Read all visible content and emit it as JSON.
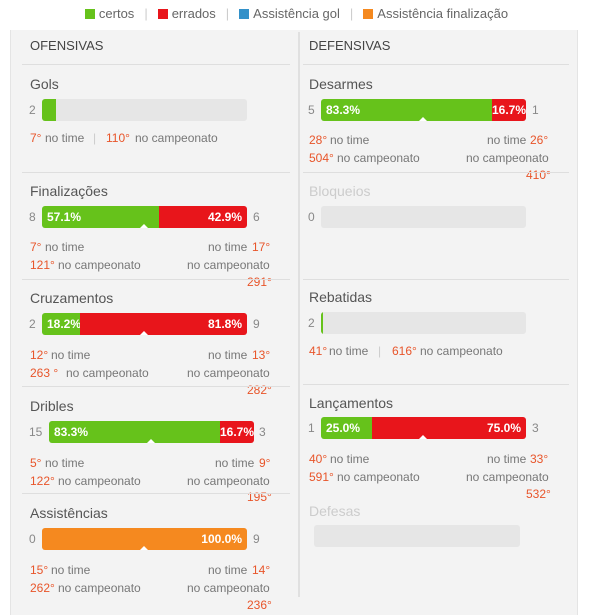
{
  "legend": [
    {
      "label": "certos",
      "color": "#66c21b"
    },
    {
      "label": "errados",
      "color": "#e8151b"
    },
    {
      "label": "Assistência gol",
      "color": "#3391c9"
    },
    {
      "label": "Assistência finalização",
      "color": "#f5891f"
    }
  ],
  "colors": {
    "green": "#66c21b",
    "red": "#e8151b",
    "orange": "#f5891f",
    "rank": "#e8552a"
  },
  "ofensivas": {
    "title": "OFENSIVAS",
    "gols": {
      "title": "Gols",
      "left": "2",
      "fill_fraction": 0.05,
      "team_rank": "7°",
      "team_label": "no time",
      "camp_rank": "110°",
      "camp_label": "no campeonato"
    },
    "finalizacoes": {
      "title": "Finalizações",
      "left": "8",
      "right": "6",
      "pct_ok": "57.1%",
      "pct_err": "42.9%",
      "team_rank_l": "7°",
      "team_label_l": "no time",
      "camp_rank_l": "121°",
      "camp_label_l": "no campeonato",
      "team_label_r": "no time",
      "team_rank_r": "17°",
      "camp_label_r": "no campeonato",
      "camp_rank_r": "291°"
    },
    "cruzamentos": {
      "title": "Cruzamentos",
      "left": "2",
      "right": "9",
      "pct_ok": "18.2%",
      "pct_err": "81.8%",
      "team_rank_l": "12°",
      "team_label_l": "no time",
      "camp_rank_l": "263 °",
      "camp_label_l": "no campeonato",
      "team_label_r": "no time",
      "team_rank_r": "13°",
      "camp_label_r": "no campeonato",
      "camp_rank_r": "282°"
    },
    "dribles": {
      "title": "Dribles",
      "left": "15",
      "right": "3",
      "pct_ok": "83.3%",
      "pct_err": "16.7%",
      "team_rank_l": "5°",
      "team_label_l": "no time",
      "camp_rank_l": "122°",
      "camp_label_l": "no campeonato",
      "team_label_r": "no time",
      "team_rank_r": "9°",
      "camp_label_r": "no campeonato",
      "camp_rank_r": "195°"
    },
    "assistencias": {
      "title": "Assistências",
      "left": "0",
      "right": "9",
      "pct": "100.0%",
      "team_rank_l": "15°",
      "team_label_l": "no time",
      "camp_rank_l": "262°",
      "camp_label_l": "no campeonato",
      "team_label_r": "no time",
      "team_rank_r": "14°",
      "camp_label_r": "no campeonato",
      "camp_rank_r": "236°"
    }
  },
  "defensivas": {
    "title": "DEFENSIVAS",
    "desarmes": {
      "title": "Desarmes",
      "left": "5",
      "right": "1",
      "pct_ok": "83.3%",
      "pct_err": "16.7%",
      "team_rank_l": "28°",
      "team_label_l": "no time",
      "camp_rank_l": "504°",
      "camp_label_l": "no campeonato",
      "team_label_r": "no time",
      "team_rank_r": "26°",
      "camp_label_r": "no campeonato",
      "camp_rank_r": "410°"
    },
    "bloqueios": {
      "title": "Bloqueios",
      "left": "0"
    },
    "rebatidas": {
      "title": "Rebatidas",
      "left": "2",
      "fill_fraction": 0.01,
      "team_rank": "41°",
      "team_label": "no time",
      "camp_rank": "616°",
      "camp_label": "no campeonato"
    },
    "lancamentos": {
      "title": "Lançamentos",
      "left": "1",
      "right": "3",
      "pct_ok": "25.0%",
      "pct_err": "75.0%",
      "team_rank_l": "40°",
      "team_label_l": "no time",
      "camp_rank_l": "591°",
      "camp_label_l": "no campeonato",
      "team_label_r": "no time",
      "team_rank_r": "33°",
      "camp_label_r": "no campeonato",
      "camp_rank_r": "532°"
    },
    "defesas": {
      "title": "Defesas"
    }
  }
}
